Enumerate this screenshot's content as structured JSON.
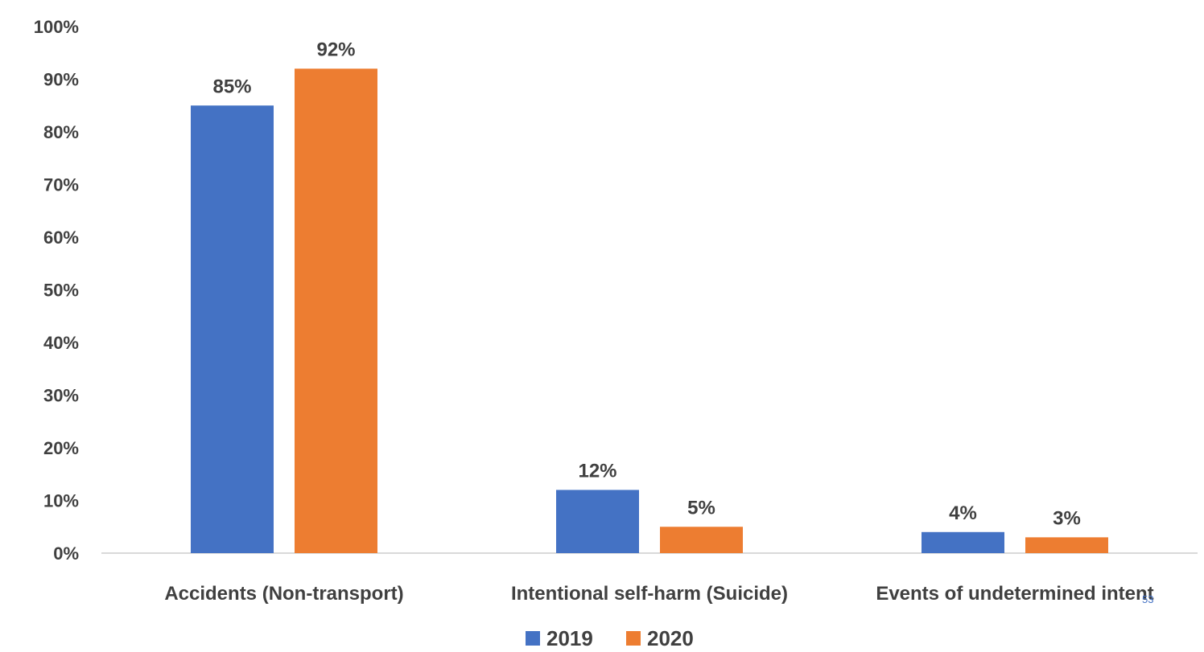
{
  "chart_data": {
    "type": "bar",
    "categories": [
      "Accidents (Non-transport)",
      "Intentional self-harm (Suicide)",
      "Events of undetermined intent"
    ],
    "series": [
      {
        "name": "2019",
        "values": [
          0.85,
          0.12,
          0.04
        ],
        "labels": [
          "85%",
          "12%",
          "4%"
        ],
        "color": "#4472c4"
      },
      {
        "name": "2020",
        "values": [
          0.92,
          0.05,
          0.03
        ],
        "labels": [
          "92%",
          "5%",
          "3%"
        ],
        "color": "#ed7d31"
      }
    ],
    "ylim": [
      0,
      1
    ],
    "yticks": [
      0,
      0.1,
      0.2,
      0.3,
      0.4,
      0.5,
      0.6,
      0.7,
      0.8,
      0.9,
      1.0
    ],
    "ytick_labels": [
      "0%",
      "10%",
      "20%",
      "30%",
      "40%",
      "50%",
      "60%",
      "70%",
      "80%",
      "90%",
      "100%"
    ],
    "grid": false,
    "legend_position": "bottom",
    "title": "",
    "xlabel": "",
    "ylabel": ""
  },
  "page_number": "53"
}
